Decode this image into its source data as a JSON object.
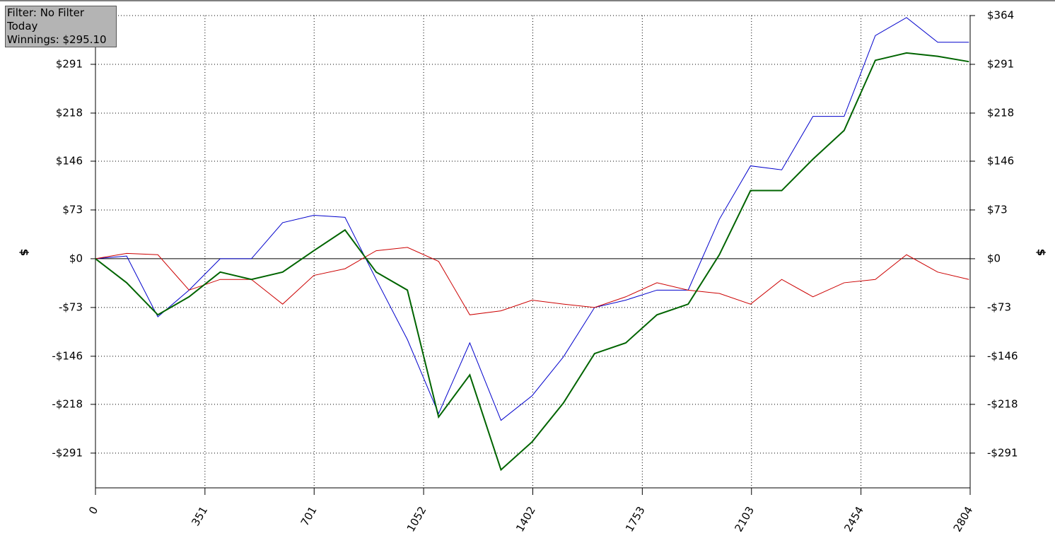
{
  "chart_data": {
    "type": "line",
    "annotations": [
      "Filter: No Filter",
      "Today",
      "Winnings: $295.10"
    ],
    "ylabel": "$",
    "x": [
      0,
      100,
      200,
      300,
      400,
      500,
      600,
      700,
      800,
      900,
      1000,
      1100,
      1200,
      1300,
      1400,
      1500,
      1600,
      1700,
      1800,
      1900,
      2000,
      2100,
      2200,
      2300,
      2400,
      2500,
      2600,
      2700,
      2800
    ],
    "series": [
      {
        "color": "#0000cc",
        "width": 1,
        "values": [
          0,
          4,
          -87,
          -47,
          0,
          0,
          54,
          65,
          62,
          -31,
          -121,
          -232,
          -126,
          -242,
          -205,
          -147,
          -73,
          -62,
          -47,
          -47,
          59,
          139,
          133,
          213,
          213,
          334,
          361,
          324,
          324
        ]
      },
      {
        "color": "#cc0000",
        "width": 1,
        "values": [
          0,
          8,
          6,
          -47,
          -31,
          -31,
          -68,
          -25,
          -15,
          12,
          17,
          -4,
          -84,
          -78,
          -62,
          -68,
          -73,
          -57,
          -36,
          -47,
          -52,
          -68,
          -31,
          -57,
          -36,
          -31,
          6,
          -20,
          -31
        ]
      },
      {
        "color": "#006400",
        "width": 2,
        "values": [
          0,
          -36,
          -84,
          -57,
          -20,
          -31,
          -20,
          12,
          43,
          -20,
          -47,
          -237,
          -174,
          -316,
          -274,
          -216,
          -142,
          -126,
          -84,
          -68,
          6,
          102,
          102,
          149,
          192,
          297,
          308,
          303,
          295
        ]
      }
    ],
    "xlim": [
      0,
      2804
    ],
    "xticks": [
      0,
      351,
      701,
      1052,
      1402,
      1753,
      2103,
      2454,
      2804
    ],
    "ylim": [
      -343,
      364
    ],
    "yticks": [
      {
        "value": 364,
        "label": "$364"
      },
      {
        "value": 291,
        "label": "$291"
      },
      {
        "value": 218,
        "label": "$218"
      },
      {
        "value": 146,
        "label": "$146"
      },
      {
        "value": 73,
        "label": "$73"
      },
      {
        "value": 0,
        "label": "$0"
      },
      {
        "value": -73,
        "label": "-$73"
      },
      {
        "value": -146,
        "label": "-$146"
      },
      {
        "value": -218,
        "label": "-$218"
      },
      {
        "value": -291,
        "label": "-$291"
      }
    ],
    "grid": true
  }
}
